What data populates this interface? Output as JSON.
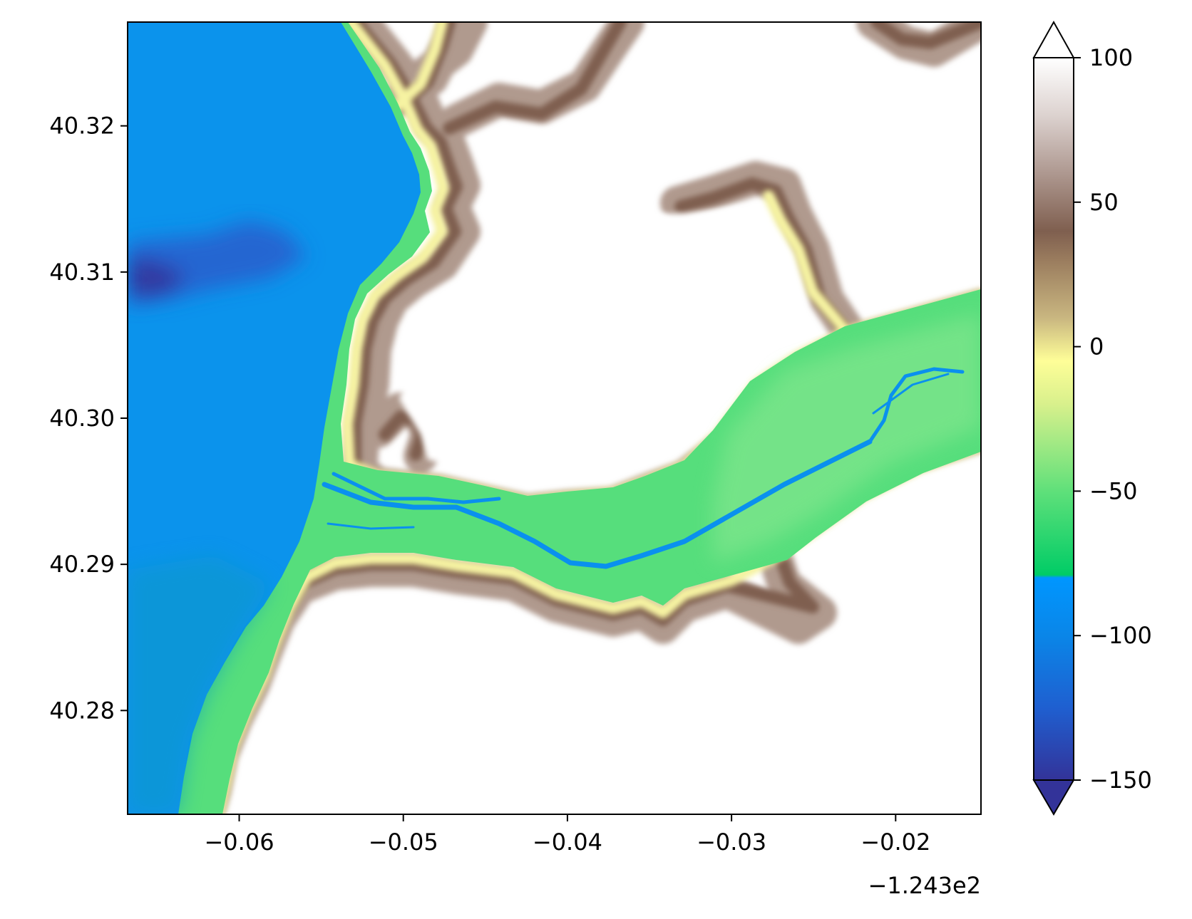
{
  "chart_data": {
    "type": "heatmap",
    "title": "",
    "xlabel": "",
    "ylabel": "",
    "x_offset_label": "−1.243e2",
    "xlim": [
      -0.0668,
      -0.0148
    ],
    "ylim": [
      40.2729,
      40.3271
    ],
    "xticks": [
      -0.06,
      -0.05,
      -0.04,
      -0.03,
      -0.02
    ],
    "xtick_labels": [
      "−0.06",
      "−0.05",
      "−0.04",
      "−0.03",
      "−0.02"
    ],
    "yticks": [
      40.28,
      40.29,
      40.3,
      40.31,
      40.32
    ],
    "ytick_labels": [
      "40.28",
      "40.29",
      "40.30",
      "40.31",
      "40.32"
    ],
    "grid": false,
    "colormap": "terrain (elevation, negative = below sea level)",
    "colorbar": {
      "range": [
        -150,
        100
      ],
      "ticks": [
        -150,
        -100,
        -50,
        0,
        50,
        100
      ],
      "tick_labels": [
        "−150",
        "−100",
        "−50",
        "0",
        "50",
        "100"
      ],
      "extend": "both",
      "stops": [
        {
          "value": -150,
          "color": "#333399"
        },
        {
          "value": -125,
          "color": "#1f5fd0"
        },
        {
          "value": -100,
          "color": "#0a86e8"
        },
        {
          "value": -80,
          "color": "#0096ff"
        },
        {
          "value": -79,
          "color": "#00cc66"
        },
        {
          "value": -50,
          "color": "#5fe07a"
        },
        {
          "value": -20,
          "color": "#d8f08c"
        },
        {
          "value": -5,
          "color": "#fefe98"
        },
        {
          "value": 10,
          "color": "#c9b680"
        },
        {
          "value": 30,
          "color": "#9a7c5e"
        },
        {
          "value": 40,
          "color": "#7f5f4f"
        },
        {
          "value": 60,
          "color": "#ae9890"
        },
        {
          "value": 80,
          "color": "#dcd2cf"
        },
        {
          "value": 100,
          "color": "#ffffff"
        }
      ]
    },
    "regions": [
      {
        "name": "ocean",
        "value": -100,
        "color": "#0096f0"
      },
      {
        "name": "deep basin",
        "value": -140,
        "color": "#333399"
      },
      {
        "name": "shelf / river channel",
        "value": -55,
        "color": "#4fdd7e"
      },
      {
        "name": "shoreline",
        "value": 0,
        "color": "#f3f0a0"
      },
      {
        "name": "bluffs",
        "value": 40,
        "color": "#7f5f4f"
      },
      {
        "name": "uplands",
        "value": 100,
        "color": "#ffffff"
      }
    ]
  }
}
